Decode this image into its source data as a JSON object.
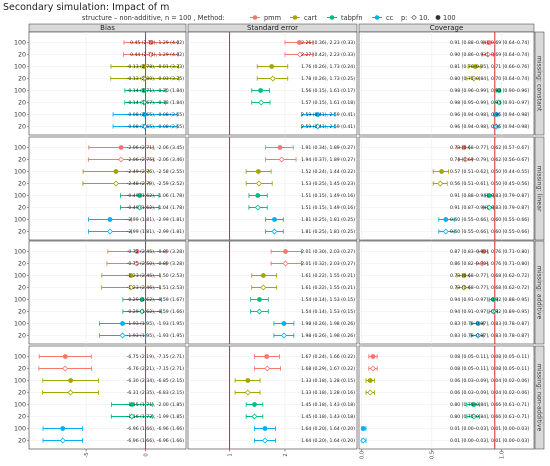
{
  "title": "Secondary simulation: Impact of m",
  "legend": {
    "prefix": "structure – non-additive, n = 100 , Method:",
    "methods": [
      {
        "key": "pmm",
        "label": "pmm",
        "color": "#F8766D"
      },
      {
        "key": "cart",
        "label": "cart",
        "color": "#A3A500"
      },
      {
        "key": "tabpfn",
        "label": "tabpfn",
        "color": "#00BF7D"
      },
      {
        "key": "cc",
        "label": "cc",
        "color": "#00B0F6"
      }
    ],
    "p_label": "p:",
    "p_values": [
      "10.",
      "100"
    ]
  },
  "colors": {
    "panel_bg": "#FFFFFF",
    "strip_bg": "#D9D9D9",
    "grid": "#EBEBEB",
    "vline": "#D62728",
    "frame": "#333333"
  },
  "chart_data": {
    "type": "forest",
    "panels": [
      {
        "key": "bias",
        "title": "Bias",
        "xlim": [
          -9.8,
          3.4
        ],
        "ref": 0,
        "ticks": [
          -5,
          0
        ],
        "tick_labels": [
          "-5",
          "0"
        ]
      },
      {
        "key": "se",
        "title": "Standard error",
        "xlim": [
          0.25,
          3.3
        ],
        "ref": 1,
        "ticks": [
          1,
          2
        ],
        "tick_labels": [
          "1",
          "2"
        ]
      },
      {
        "key": "cov",
        "title": "Coverage",
        "xlim": [
          -0.02,
          1.23
        ],
        "ref": 0.95,
        "ticks": [
          0,
          0.5,
          1
        ],
        "tick_labels": [
          "0.0",
          "0.5",
          "1.0"
        ]
      }
    ],
    "groups": [
      {
        "name": "missing: constant",
        "rows": [
          {
            "m": "100",
            "method": "pmm",
            "p": "100",
            "bias": [
              0.45,
              -1.82,
              2.72
            ],
            "bias_label": "0.45 (2.72), 1.29 (4.02)",
            "se": [
              2.26,
              2.0,
              2.5
            ],
            "se_label": "2.26 (0.36), 2.23 (0.33)",
            "cov": [
              0.91,
              0.87,
              0.95
            ],
            "cov_label": "0.91 [0.88–0.94], 0.69 [0.64–0.74]"
          },
          {
            "m": "20",
            "method": "pmm",
            "p": "10",
            "bias": [
              0.44,
              -1.85,
              2.74
            ],
            "bias_label": "0.44 (2.74), 1.29 (4.02)",
            "se": [
              2.27,
              2.0,
              2.5
            ],
            "se_label": "2.27 (0.42), 2.23 (0.33)",
            "cov": [
              0.9,
              0.86,
              0.94
            ],
            "cov_label": "0.90 [0.86–0.93], 0.69 [0.64–0.74]"
          },
          {
            "m": "100",
            "method": "cart",
            "p": "100",
            "bias": [
              -0.13,
              -2.91,
              2.78
            ],
            "bias_label": "-0.13 (2.78), -0.01 (3.23)",
            "se": [
              1.76,
              1.5,
              2.05
            ],
            "se_label": "1.76 (0.26), 1.73 (0.24)",
            "cov": [
              0.81,
              0.76,
              0.85
            ],
            "cov_label": "0.81 [0.76–0.85], 0.71 [0.66–0.76]"
          },
          {
            "m": "20",
            "method": "cart",
            "p": "10",
            "bias": [
              -0.13,
              -2.93,
              2.8
            ],
            "bias_label": "-0.13 (2.80), -0.03 (3.25)",
            "se": [
              1.78,
              1.5,
              2.05
            ],
            "se_label": "1.78 (0.26), 1.73 (0.25)",
            "cov": [
              0.8,
              0.75,
              0.84
            ],
            "cov_label": "0.80 [0.75–0.84], 0.70 [0.64–0.74]"
          },
          {
            "m": "100",
            "method": "tabpfn",
            "p": "100",
            "bias": [
              -0.14,
              -1.74,
              1.71
            ],
            "bias_label": "-0.14 (1.71), -0.20 (1.84)",
            "se": [
              1.56,
              1.4,
              1.72
            ],
            "se_label": "1.56 (0.15), 1.61 (0.17)",
            "cov": [
              0.98,
              0.96,
              0.99
            ],
            "cov_label": "0.98 [0.96–0.99], 0.93 [0.90–0.96]"
          },
          {
            "m": "20",
            "method": "tabpfn",
            "p": "10",
            "bias": [
              -0.14,
              -1.75,
              1.67
            ],
            "bias_label": "-0.14 (1.67), -0.18 (1.84)",
            "se": [
              1.57,
              1.4,
              1.73
            ],
            "se_label": "1.57 (0.15), 1.61 (0.18)",
            "cov": [
              0.98,
              0.95,
              0.99
            ],
            "cov_label": "0.98 [0.95–0.99], 0.94 [0.91–0.97]"
          },
          {
            "m": "100",
            "method": "cc",
            "p": "100",
            "bias": [
              -0.08,
              -2.73,
              2.65
            ],
            "bias_label": "-0.08 (2.65), -0.08 (2.65)",
            "se": [
              2.59,
              2.3,
              2.9
            ],
            "se_label": "2.59 (0.41), 2.59 (0.41)",
            "cov": [
              0.96,
              0.94,
              0.98
            ],
            "cov_label": "0.96 [0.94–0.98], 0.96 [0.94–0.98]"
          },
          {
            "m": "20",
            "method": "cc",
            "p": "10",
            "bias": [
              -0.08,
              -2.73,
              2.65
            ],
            "bias_label": "-0.08 (2.65), -0.08 (2.65)",
            "se": [
              2.59,
              2.3,
              2.9
            ],
            "se_label": "2.59 (0.41), 2.59 (0.41)",
            "cov": [
              0.96,
              0.94,
              0.98
            ],
            "cov_label": "0.96 [0.94–0.98], 0.96 [0.94–0.98]"
          }
        ]
      },
      {
        "name": "missing: linear",
        "rows": [
          {
            "m": "100",
            "method": "pmm",
            "p": "100",
            "bias": [
              -2.06,
              -4.77,
              0.65
            ],
            "bias_label": "-2.06 (2.71), -2.06 (3.45)",
            "se": [
              1.91,
              1.65,
              2.15
            ],
            "se_label": "1.91 (0.34), 1.89 (0.27)",
            "cov": [
              0.73,
              0.68,
              0.77
            ],
            "cov_label": "0.73 [0.68–0.77], 0.62 [0.57–0.67]"
          },
          {
            "m": "20",
            "method": "pmm",
            "p": "10",
            "bias": [
              -2.06,
              -4.81,
              0.69
            ],
            "bias_label": "-2.06 (2.75), -2.06 (3.46)",
            "se": [
              1.94,
              1.65,
              2.2
            ],
            "se_label": "1.94 (0.37), 1.89 (0.27)",
            "cov": [
              0.74,
              0.69,
              0.79
            ],
            "cov_label": "0.74 [0.69–0.79], 0.62 [0.56–0.67]"
          },
          {
            "m": "100",
            "method": "cart",
            "p": "100",
            "bias": [
              -2.49,
              -5.25,
              0.27
            ],
            "bias_label": "-2.49 (2.76), -2.58 (2.55)",
            "se": [
              1.52,
              1.3,
              1.75
            ],
            "se_label": "1.52 (0.24), 1.44 (0.22)",
            "cov": [
              0.57,
              0.51,
              0.62
            ],
            "cov_label": "0.57 [0.51–0.62], 0.50 [0.44–0.55]"
          },
          {
            "m": "20",
            "method": "cart",
            "p": "10",
            "bias": [
              -2.48,
              -5.27,
              0.31
            ],
            "bias_label": "-2.48 (2.79), -2.59 (2.52)",
            "se": [
              1.53,
              1.3,
              1.77
            ],
            "se_label": "1.53 (0.25), 1.45 (0.23)",
            "cov": [
              0.56,
              0.51,
              0.61
            ],
            "cov_label": "0.56 [0.51–0.61], 0.50 [0.45–0.56]"
          },
          {
            "m": "100",
            "method": "tabpfn",
            "p": "100",
            "bias": [
              -0.49,
              -2.11,
              1.13
            ],
            "bias_label": "-0.49 (1.62), -1.06 (1.78)",
            "se": [
              1.51,
              1.35,
              1.68
            ],
            "se_label": "1.51 (0.15), 1.49 (0.16)",
            "cov": [
              0.91,
              0.88,
              0.94
            ],
            "cov_label": "0.91 [0.88–0.94], 0.83 [0.79–0.87]"
          },
          {
            "m": "20",
            "method": "tabpfn",
            "p": "10",
            "bias": [
              -0.49,
              -2.11,
              1.13
            ],
            "bias_label": "-0.49 (1.62), -1.04 (1.78)",
            "se": [
              1.51,
              1.35,
              1.68
            ],
            "se_label": "1.51 (0.15), 1.49 (0.16)",
            "cov": [
              0.91,
              0.87,
              0.94
            ],
            "cov_label": "0.91 [0.87–0.94], 0.83 [0.79–0.87]"
          },
          {
            "m": "100",
            "method": "cc",
            "p": "100",
            "bias": [
              -2.99,
              -4.8,
              -1.18
            ],
            "bias_label": "-2.99 (1.81), -2.99 (1.81)",
            "se": [
              1.81,
              1.65,
              1.97
            ],
            "se_label": "1.81 (0.25), 1.81 (0.25)",
            "cov": [
              0.6,
              0.55,
              0.66
            ],
            "cov_label": "0.60 [0.55–0.66], 0.60 [0.55–0.66]"
          },
          {
            "m": "20",
            "method": "cc",
            "p": "10",
            "bias": [
              -2.99,
              -4.8,
              -1.18
            ],
            "bias_label": "-2.99 (1.81), -2.99 (1.81)",
            "se": [
              1.81,
              1.65,
              1.97
            ],
            "se_label": "1.81 (0.25), 1.81 (0.25)",
            "cov": [
              0.6,
              0.55,
              0.66
            ],
            "cov_label": "0.60 [0.55–0.66], 0.60 [0.55–0.66]"
          }
        ]
      },
      {
        "name": "missing: additive",
        "rows": [
          {
            "m": "100",
            "method": "pmm",
            "p": "100",
            "bias": [
              -0.72,
              -3.17,
              1.73
            ],
            "bias_label": "-0.72 (2.45), -0.89 (3.28)",
            "se": [
              2.01,
              1.75,
              2.3
            ],
            "se_label": "2.01 (0.30), 2.03 (0.27)",
            "cov": [
              0.87,
              0.83,
              0.9
            ],
            "cov_label": "0.87 [0.83–0.90], 0.76 [0.71–0.80]"
          },
          {
            "m": "20",
            "method": "pmm",
            "p": "10",
            "bias": [
              -0.75,
              -3.25,
              1.75
            ],
            "bias_label": "-0.75 (2.50), -0.89 (3.28)",
            "se": [
              2.01,
              1.75,
              2.3
            ],
            "se_label": "2.01 (0.32), 2.03 (0.27)",
            "cov": [
              0.86,
              0.82,
              0.9
            ],
            "cov_label": "0.86 [0.82–0.90], 0.76 [0.71–0.80]"
          },
          {
            "m": "100",
            "method": "cart",
            "p": "100",
            "bias": [
              -1.23,
              -3.68,
              1.22
            ],
            "bias_label": "-1.23 (2.45), -1.50 (2.53)",
            "se": [
              1.61,
              1.4,
              1.85
            ],
            "se_label": "1.61 (0.22), 1.55 (0.21)",
            "cov": [
              0.73,
              0.68,
              0.77
            ],
            "cov_label": "0.73 [0.68–0.77], 0.68 [0.62–0.72]"
          },
          {
            "m": "20",
            "method": "cart",
            "p": "10",
            "bias": [
              -1.23,
              -3.69,
              1.23
            ],
            "bias_label": "-1.23 (2.46), -1.51 (2.53)",
            "se": [
              1.61,
              1.4,
              1.85
            ],
            "se_label": "1.61 (0.22), 1.55 (0.21)",
            "cov": [
              0.73,
              0.68,
              0.77
            ],
            "cov_label": "0.73 [0.68–0.77], 0.68 [0.62–0.72]"
          },
          {
            "m": "100",
            "method": "tabpfn",
            "p": "100",
            "bias": [
              -0.29,
              -1.91,
              1.33
            ],
            "bias_label": "-0.29 (1.62), -0.59 (1.67)",
            "se": [
              1.54,
              1.38,
              1.7
            ],
            "se_label": "1.54 (0.14), 1.53 (0.15)",
            "cov": [
              0.94,
              0.91,
              0.97
            ],
            "cov_label": "0.94 [0.91–0.97], 0.92 [0.88–0.95]"
          },
          {
            "m": "20",
            "method": "tabpfn",
            "p": "10",
            "bias": [
              -0.29,
              -1.91,
              1.33
            ],
            "bias_label": "-0.29 (1.62), -0.59 (1.66)",
            "se": [
              1.54,
              1.38,
              1.7
            ],
            "se_label": "1.54 (0.14), 1.53 (0.15)",
            "cov": [
              0.94,
              0.91,
              0.97
            ],
            "cov_label": "0.94 [0.91–0.97], 0.92 [0.89–0.95]"
          },
          {
            "m": "100",
            "method": "cc",
            "p": "100",
            "bias": [
              -1.93,
              -3.88,
              0.02
            ],
            "bias_label": "-1.93 (1.95), -1.93 (1.95)",
            "se": [
              1.98,
              1.8,
              2.16
            ],
            "se_label": "1.98 (0.26), 1.98 (0.26)",
            "cov": [
              0.83,
              0.78,
              0.87
            ],
            "cov_label": "0.83 [0.78–0.87], 0.83 [0.78–0.87]"
          },
          {
            "m": "20",
            "method": "cc",
            "p": "10",
            "bias": [
              -1.93,
              -3.88,
              0.02
            ],
            "bias_label": "-1.93 (1.95), -1.93 (1.95)",
            "se": [
              1.98,
              1.8,
              2.16
            ],
            "se_label": "1.98 (0.26), 1.98 (0.26)",
            "cov": [
              0.83,
              0.78,
              0.87
            ],
            "cov_label": "0.83 [0.78–0.87], 0.83 [0.78–0.87]"
          }
        ]
      },
      {
        "name": "missing: non-additive",
        "rows": [
          {
            "m": "100",
            "method": "pmm",
            "p": "100",
            "bias": [
              -6.75,
              -8.94,
              -4.56
            ],
            "bias_label": "-6.75 (2.19), -7.15 (2.71)",
            "se": [
              1.67,
              1.45,
              1.9
            ],
            "se_label": "1.67 (0.24), 1.66 (0.22)",
            "cov": [
              0.08,
              0.05,
              0.11
            ],
            "cov_label": "0.08 [0.05–0.11], 0.08 [0.05–0.11]"
          },
          {
            "m": "20",
            "method": "pmm",
            "p": "10",
            "bias": [
              -6.76,
              -8.97,
              -4.55
            ],
            "bias_label": "-6.76 (2.21), -7.15 (2.71)",
            "se": [
              1.68,
              1.45,
              1.92
            ],
            "se_label": "1.68 (0.29), 1.67 (0.22)",
            "cov": [
              0.08,
              0.05,
              0.11
            ],
            "cov_label": "0.08 [0.05–0.11], 0.08 [0.05–0.11]"
          },
          {
            "m": "100",
            "method": "cart",
            "p": "100",
            "bias": [
              -6.3,
              -8.64,
              -3.96
            ],
            "bias_label": "-6.30 (2.34), -6.85 (2.15)",
            "se": [
              1.33,
              1.1,
              1.55
            ],
            "se_label": "1.33 (0.18), 1.28 (0.15)",
            "cov": [
              0.06,
              0.03,
              0.09
            ],
            "cov_label": "0.06 [0.03–0.09], 0.04 [0.02–0.06]"
          },
          {
            "m": "20",
            "method": "cart",
            "p": "10",
            "bias": [
              -6.31,
              -8.66,
              -3.96
            ],
            "bias_label": "-6.31 (2.35), -6.83 (2.15)",
            "se": [
              1.33,
              1.1,
              1.55
            ],
            "se_label": "1.33 (0.18), 1.28 (0.16)",
            "cov": [
              0.06,
              0.03,
              0.09
            ],
            "cov_label": "0.06 [0.03–0.09], 0.04 [0.02–0.06]"
          },
          {
            "m": "100",
            "method": "tabpfn",
            "p": "100",
            "bias": [
              -1.15,
              -2.86,
              0.56
            ],
            "bias_label": "-1.15 (1.71), -2.00 (1.85)",
            "se": [
              1.45,
              1.3,
              1.6
            ],
            "se_label": "1.45 (0.18), 1.43 (0.18)",
            "cov": [
              0.8,
              0.75,
              0.84
            ],
            "cov_label": "0.80 [0.75–0.84], 0.66 [0.61–0.71]"
          },
          {
            "m": "20",
            "method": "tabpfn",
            "p": "10",
            "bias": [
              -1.16,
              -2.88,
              0.56
            ],
            "bias_label": "-1.16 (1.72), -1.99 (1.85)",
            "se": [
              1.45,
              1.3,
              1.6
            ],
            "se_label": "1.45 (0.18), 1.43 (0.18)",
            "cov": [
              0.8,
              0.75,
              0.84
            ],
            "cov_label": "0.80 [0.75–0.84], 0.66 [0.61–0.71]"
          },
          {
            "m": "100",
            "method": "cc",
            "p": "100",
            "bias": [
              -6.96,
              -8.62,
              -5.3
            ],
            "bias_label": "-6.96 (1.66), -6.96 (1.66)",
            "se": [
              1.64,
              1.45,
              1.83
            ],
            "se_label": "1.64 (0.20), 1.64 (0.20)",
            "cov": [
              0.01,
              0.0,
              0.03
            ],
            "cov_label": "0.01 [0.00–0.03], 0.01 [0.00–0.03]"
          },
          {
            "m": "20",
            "method": "cc",
            "p": "10",
            "bias": [
              -6.96,
              -8.62,
              -5.3
            ],
            "bias_label": "-6.96 (1.66), -6.96 (1.66)",
            "se": [
              1.64,
              1.45,
              1.83
            ],
            "se_label": "1.64 (0.20), 1.64 (0.20)",
            "cov": [
              0.01,
              0.0,
              0.03
            ],
            "cov_label": "0.01 [0.00–0.03], 0.01 [0.00–0.03]"
          }
        ]
      }
    ]
  }
}
